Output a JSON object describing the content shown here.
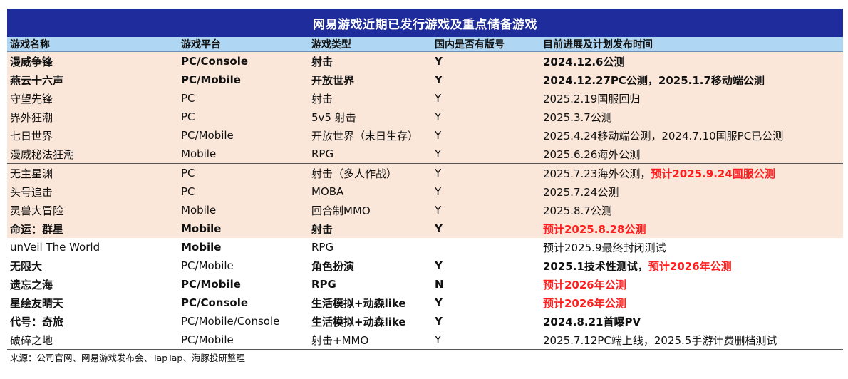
{
  "table": {
    "title": "网易游戏近期已发行游戏及重点储备游戏",
    "headers": [
      "游戏名称",
      "游戏平台",
      "游戏类型",
      "国内是否有版号",
      "目前进展及计划发布时间"
    ],
    "rows": [
      {
        "name": "漫威争锋",
        "platform": "PC/Console",
        "genre": "射击",
        "license": "Y",
        "status": "2024.12.6公测",
        "status_extra": ""
      },
      {
        "name": "燕云十六声",
        "platform": "PC/Mobile",
        "genre": "开放世界",
        "license": "Y",
        "status": "2024.12.27PC公测，2025.1.7移动端公测",
        "status_extra": ""
      },
      {
        "name": "守望先锋",
        "platform": "PC",
        "genre": "射击",
        "license": "Y",
        "status": "2025.2.19国服回归",
        "status_extra": ""
      },
      {
        "name": "界外狂潮",
        "platform": "PC",
        "genre": "5v5 射击",
        "license": "Y",
        "status": "2025.3.7公测",
        "status_extra": ""
      },
      {
        "name": "七日世界",
        "platform": "PC/Mobile",
        "genre": "开放世界（末日生存）",
        "license": "Y",
        "status": "2025.4.24移动端公测，2024.7.10国服PC已公测",
        "status_extra": ""
      },
      {
        "name": "漫威秘法狂潮",
        "platform": "Mobile",
        "genre": "RPG",
        "license": "Y",
        "status": "2025.6.26海外公测",
        "status_extra": ""
      },
      {
        "name": "无主星渊",
        "platform": "PC",
        "genre": "射击（多人作战）",
        "license": "Y",
        "status": "2025.7.23海外公测，",
        "status_extra": "预计2025.9.24国服公测"
      },
      {
        "name": "头号追击",
        "platform": "PC",
        "genre": "MOBA",
        "license": "Y",
        "status": "2025.7.24公测",
        "status_extra": ""
      },
      {
        "name": "灵兽大冒险",
        "platform": "Mobile",
        "genre": "回合制MMO",
        "license": "Y",
        "status": "2025.8.7公测",
        "status_extra": ""
      },
      {
        "name": "命运：群星",
        "platform": "Mobile",
        "genre": "射击",
        "license": "Y",
        "status": "",
        "status_extra": "预计2025.8.28公测"
      },
      {
        "name": "unVeil The World",
        "platform": "Mobile",
        "genre": "RPG",
        "license": "",
        "status": "预计2025.9最终封闭测试",
        "status_extra": ""
      },
      {
        "name": "无限大",
        "platform": "PC/Mobile",
        "genre": "角色扮演",
        "license": "Y",
        "status": "2025.1技术性测试，",
        "status_extra": "预计2026年公测"
      },
      {
        "name": "遗忘之海",
        "platform": "PC/Mobile",
        "genre": "RPG",
        "license": "N",
        "status": "",
        "status_extra": "预计2026年公测"
      },
      {
        "name": "星绘友晴天",
        "platform": "PC/Console",
        "genre": "生活模拟+动森like",
        "license": "Y",
        "status": "",
        "status_extra": "预计2026年公测"
      },
      {
        "name": "代号：奇旅",
        "platform": "PC/Mobile/Console",
        "genre": "生活模拟+动森like",
        "license": "Y",
        "status": "2024.8.21首曝PV",
        "status_extra": ""
      },
      {
        "name": "破碎之地",
        "platform": "PC/Mobile",
        "genre": "射击+MMO",
        "license": "Y",
        "status": "2025.7.12PC端上线，2025.5手游计费删档测试",
        "status_extra": ""
      }
    ],
    "source": "来源：公司官网、网易游戏发布会、TapTap、海豚投研整理"
  },
  "colors": {
    "title_bg": "#1f2c9c",
    "header_bg": "#afd7f3",
    "shaded_row_bg": "#fbe7d9",
    "highlight_text": "#ff1e1e"
  }
}
